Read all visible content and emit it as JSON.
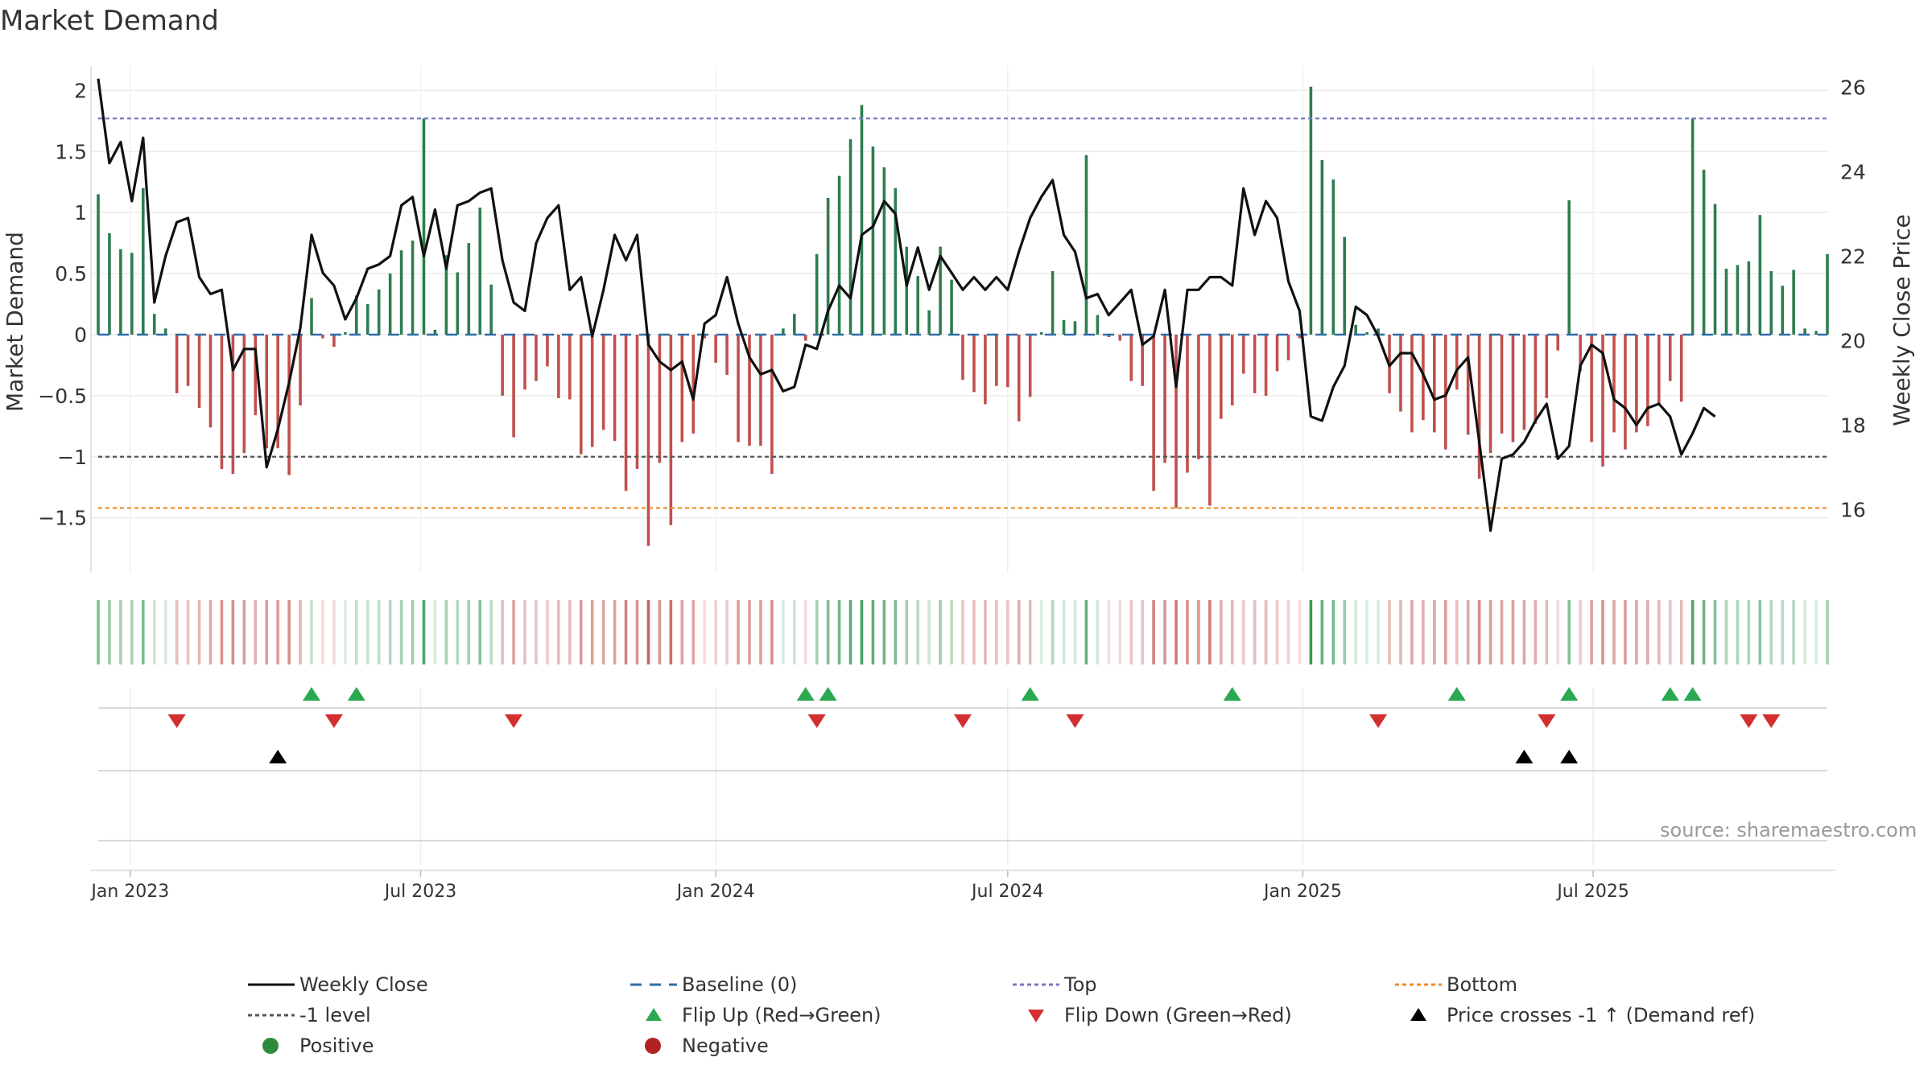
{
  "chart_data": {
    "type": "bar+line",
    "title": "Market Demand",
    "ylabel": "Market Demand",
    "y2label": "Weekly Close Price",
    "ylim": [
      -1.95,
      2.2
    ],
    "y2lim": [
      14.5,
      26.5
    ],
    "yticks": [
      "2",
      "1.5",
      "1",
      "0.5",
      "0",
      "−0.5",
      "−1",
      "−1.5"
    ],
    "yticks_values": [
      2,
      1.5,
      1,
      0.5,
      0,
      -0.5,
      -1,
      -1.5
    ],
    "y2ticks": [
      "26",
      "24",
      "22",
      "20",
      "18",
      "16"
    ],
    "y2ticks_values": [
      26,
      24,
      22,
      20,
      18,
      16
    ],
    "x_start": "2022-12-12",
    "week_days": 7,
    "xticks": [
      {
        "label": "Jan 2023",
        "date": "2023-01-01"
      },
      {
        "label": "Jul 2023",
        "date": "2023-07-01"
      },
      {
        "label": "Jan 2024",
        "date": "2024-01-01"
      },
      {
        "label": "Jul 2024",
        "date": "2024-07-01"
      },
      {
        "label": "Jan 2025",
        "date": "2025-01-01"
      },
      {
        "label": "Jul 2025",
        "date": "2025-07-01"
      }
    ],
    "reference_lines": {
      "baseline": 0,
      "top": 1.77,
      "neg_one": -1,
      "bottom": -1.42
    },
    "series": [
      {
        "name": "Market Demand",
        "kind": "bar",
        "values": [
          1.15,
          0.83,
          0.7,
          0.67,
          1.2,
          0.17,
          0.05,
          -0.48,
          -0.42,
          -0.6,
          -0.76,
          -1.1,
          -1.14,
          -0.97,
          -0.66,
          -0.93,
          -0.93,
          -1.15,
          -0.58,
          0.3,
          -0.03,
          -0.1,
          0.02,
          0.32,
          0.25,
          0.37,
          0.5,
          0.69,
          0.77,
          1.77,
          0.04,
          0.65,
          0.51,
          0.75,
          1.04,
          0.41,
          -0.5,
          -0.84,
          -0.45,
          -0.38,
          -0.26,
          -0.52,
          -0.53,
          -0.98,
          -0.92,
          -0.78,
          -0.87,
          -1.28,
          -1.1,
          -1.73,
          -1.05,
          -1.56,
          -0.88,
          -0.81,
          -0.03,
          -0.23,
          -0.33,
          -0.88,
          -0.91,
          -0.91,
          -1.14,
          0.05,
          0.17,
          -0.05,
          0.66,
          1.12,
          1.3,
          1.6,
          1.88,
          1.54,
          1.37,
          1.2,
          0.72,
          0.48,
          0.2,
          0.72,
          0.45,
          -0.37,
          -0.47,
          -0.57,
          -0.42,
          -0.43,
          -0.71,
          -0.51,
          0.02,
          0.52,
          0.12,
          0.11,
          1.47,
          0.16,
          -0.02,
          -0.05,
          -0.38,
          -0.42,
          -1.28,
          -1.05,
          -1.42,
          -1.13,
          -1.02,
          -1.4,
          -0.69,
          -0.58,
          -0.32,
          -0.48,
          -0.5,
          -0.3,
          -0.21,
          -0.03,
          2.03,
          1.43,
          1.27,
          0.8,
          0.08,
          0.02,
          0.05,
          -0.48,
          -0.63,
          -0.8,
          -0.7,
          -0.8,
          -0.94,
          -0.45,
          -0.82,
          -1.18,
          -0.97,
          -0.81,
          -0.88,
          -0.78,
          -0.73,
          -0.52,
          -0.13,
          1.1,
          -0.3,
          -0.88,
          -1.08,
          -0.8,
          -0.94,
          -0.8,
          -0.75,
          -0.56,
          -0.38,
          -0.55,
          1.77,
          1.35,
          1.07,
          0.54,
          0.57,
          0.6,
          0.98,
          0.52,
          0.4,
          0.53,
          0.05,
          0.03,
          0.66
        ]
      },
      {
        "name": "Weekly Close",
        "kind": "line",
        "axis": "right",
        "values": [
          26.2,
          24.2,
          24.7,
          23.3,
          24.8,
          20.9,
          22.0,
          22.8,
          22.9,
          21.5,
          21.1,
          21.2,
          19.3,
          19.8,
          19.8,
          17.0,
          17.9,
          19.0,
          20.3,
          22.5,
          21.6,
          21.3,
          20.5,
          21.0,
          21.7,
          21.8,
          22.0,
          23.2,
          23.4,
          22.0,
          23.1,
          21.7,
          23.2,
          23.3,
          23.5,
          23.6,
          21.9,
          20.9,
          20.7,
          22.3,
          22.9,
          23.2,
          21.2,
          21.5,
          20.1,
          21.2,
          22.5,
          21.9,
          22.5,
          19.9,
          19.5,
          19.3,
          19.5,
          18.6,
          20.4,
          20.6,
          21.5,
          20.4,
          19.6,
          19.2,
          19.3,
          18.8,
          18.9,
          19.9,
          19.8,
          20.7,
          21.3,
          21.0,
          22.5,
          22.7,
          23.3,
          23.0,
          21.3,
          22.2,
          21.2,
          22.0,
          21.6,
          21.2,
          21.5,
          21.2,
          21.5,
          21.2,
          22.1,
          22.9,
          23.4,
          23.8,
          22.5,
          22.1,
          21.0,
          21.1,
          20.6,
          20.9,
          21.2,
          19.9,
          20.1,
          21.2,
          18.9,
          21.2,
          21.2,
          21.5,
          21.5,
          21.3,
          23.6,
          22.5,
          23.3,
          22.9,
          21.4,
          20.7,
          18.2,
          18.1,
          18.9,
          19.4,
          20.8,
          20.6,
          20.1,
          19.4,
          19.7,
          19.7,
          19.2,
          18.6,
          18.7,
          19.3,
          19.6,
          17.6,
          15.5,
          17.2,
          17.3,
          17.6,
          18.1,
          18.5,
          17.2,
          17.5,
          19.4,
          19.9,
          19.7,
          18.6,
          18.4,
          18.0,
          18.4,
          18.5,
          18.2,
          17.3,
          17.8,
          18.4,
          18.2
        ]
      }
    ],
    "flip_up_weeks": [
      19,
      23,
      63,
      65,
      83,
      101,
      121,
      131,
      140,
      142
    ],
    "flip_down_weeks": [
      7,
      21,
      37,
      64,
      77,
      87,
      114,
      129,
      147,
      149
    ],
    "price_cross_weeks": [
      16,
      127,
      131
    ]
  },
  "source": "source: sharemaestro.com",
  "legend": [
    {
      "label": "Weekly Close",
      "symbol": "line",
      "color": "#111111",
      "dash": ""
    },
    {
      "label": "Baseline (0)",
      "symbol": "line",
      "color": "#2f6ea5",
      "dash": "14,10"
    },
    {
      "label": "Top",
      "symbol": "line",
      "color": "#7b7bc0",
      "dash": "5,4"
    },
    {
      "label": "Bottom",
      "symbol": "line",
      "color": "#f08a24",
      "dash": "5,4"
    },
    {
      "label": "-1 level",
      "symbol": "line",
      "color": "#555555",
      "dash": "5,4"
    },
    {
      "label": "Flip Up (Red→Green)",
      "symbol": "triangle-up",
      "color": "#2aa852"
    },
    {
      "label": "Flip Down (Green→Red)",
      "symbol": "triangle-down",
      "color": "#d32f2f"
    },
    {
      "label": "Price crosses -1 ↑ (Demand ref)",
      "symbol": "triangle-up",
      "color": "#000000"
    },
    {
      "label": "Positive",
      "symbol": "circle",
      "color": "#2e8b3a"
    },
    {
      "label": "Negative",
      "symbol": "circle",
      "color": "#b22222"
    }
  ],
  "colors": {
    "positive": "#2e7d4f",
    "negative": "#c0504d",
    "line": "#111111",
    "baseline": "#2f6ea5",
    "top": "#7b7bc0",
    "bottom": "#f08a24",
    "neg_one": "#555555",
    "flip_up": "#2aa852",
    "flip_down": "#d32f2f",
    "cross": "#000000"
  }
}
